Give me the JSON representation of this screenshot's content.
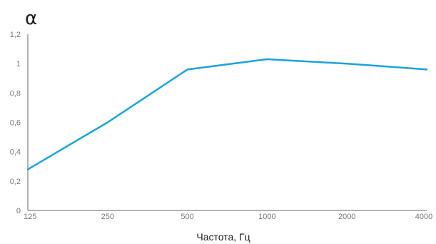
{
  "chart_data": {
    "type": "line",
    "title": "",
    "ylabel": "α",
    "xlabel": "Частота, Гц",
    "categories": [
      "125",
      "250",
      "500",
      "1000",
      "2000",
      "4000"
    ],
    "x": [
      125,
      250,
      500,
      1000,
      2000,
      4000
    ],
    "series": [
      {
        "color": "#1aa3d9",
        "values": [
          0.28,
          0.6,
          0.96,
          1.03,
          1.0,
          0.96
        ]
      }
    ],
    "yticks": [
      "0",
      "0,2",
      "0,4",
      "0,6",
      "0,8",
      "1",
      "1,2"
    ],
    "ytick_values": [
      0,
      0.2,
      0.4,
      0.6,
      0.8,
      1.0,
      1.2
    ],
    "ylim": [
      0,
      1.2
    ],
    "xscale": "log",
    "grid": false,
    "legend": "none"
  }
}
